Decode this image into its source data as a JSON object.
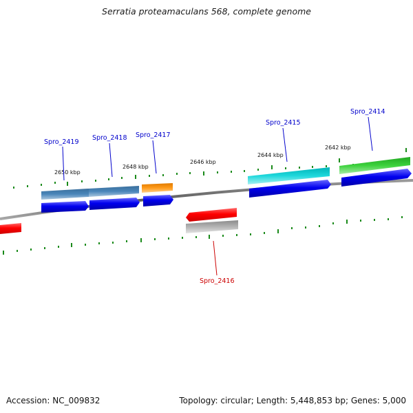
{
  "title": "Serratia proteamaculans 568, complete genome",
  "footer": {
    "accession": "Accession: NC_009832",
    "summary": "Topology: circular; Length: 5,448,853 bp; Genes: 5,000"
  },
  "scale": {
    "ticks": [
      "2650 kbp",
      "2648 kbp",
      "2646 kbp",
      "2644 kbp",
      "2642 kbp"
    ]
  },
  "genes": [
    {
      "name": "Spro_2419",
      "strand": "forward",
      "color": "#4682b4"
    },
    {
      "name": "Spro_2418",
      "strand": "forward",
      "color": "#4682b4"
    },
    {
      "name": "Spro_2417",
      "strand": "forward",
      "color": "#ff8c00"
    },
    {
      "name": "Spro_2415",
      "strand": "forward",
      "color": "#00ced1"
    },
    {
      "name": "Spro_2414",
      "strand": "forward",
      "color": "#32cd32"
    },
    {
      "name": "Spro_2416",
      "strand": "reverse",
      "color": "#ff0000"
    }
  ],
  "colors": {
    "forward_label": "#0000cc",
    "reverse_label": "#cc0000",
    "cds": "#0000ee",
    "reverse_cds": "#ff0000",
    "reverse_gene": "#b0b0b0",
    "backbone": "#777777",
    "tick": "#1a8a1a"
  }
}
